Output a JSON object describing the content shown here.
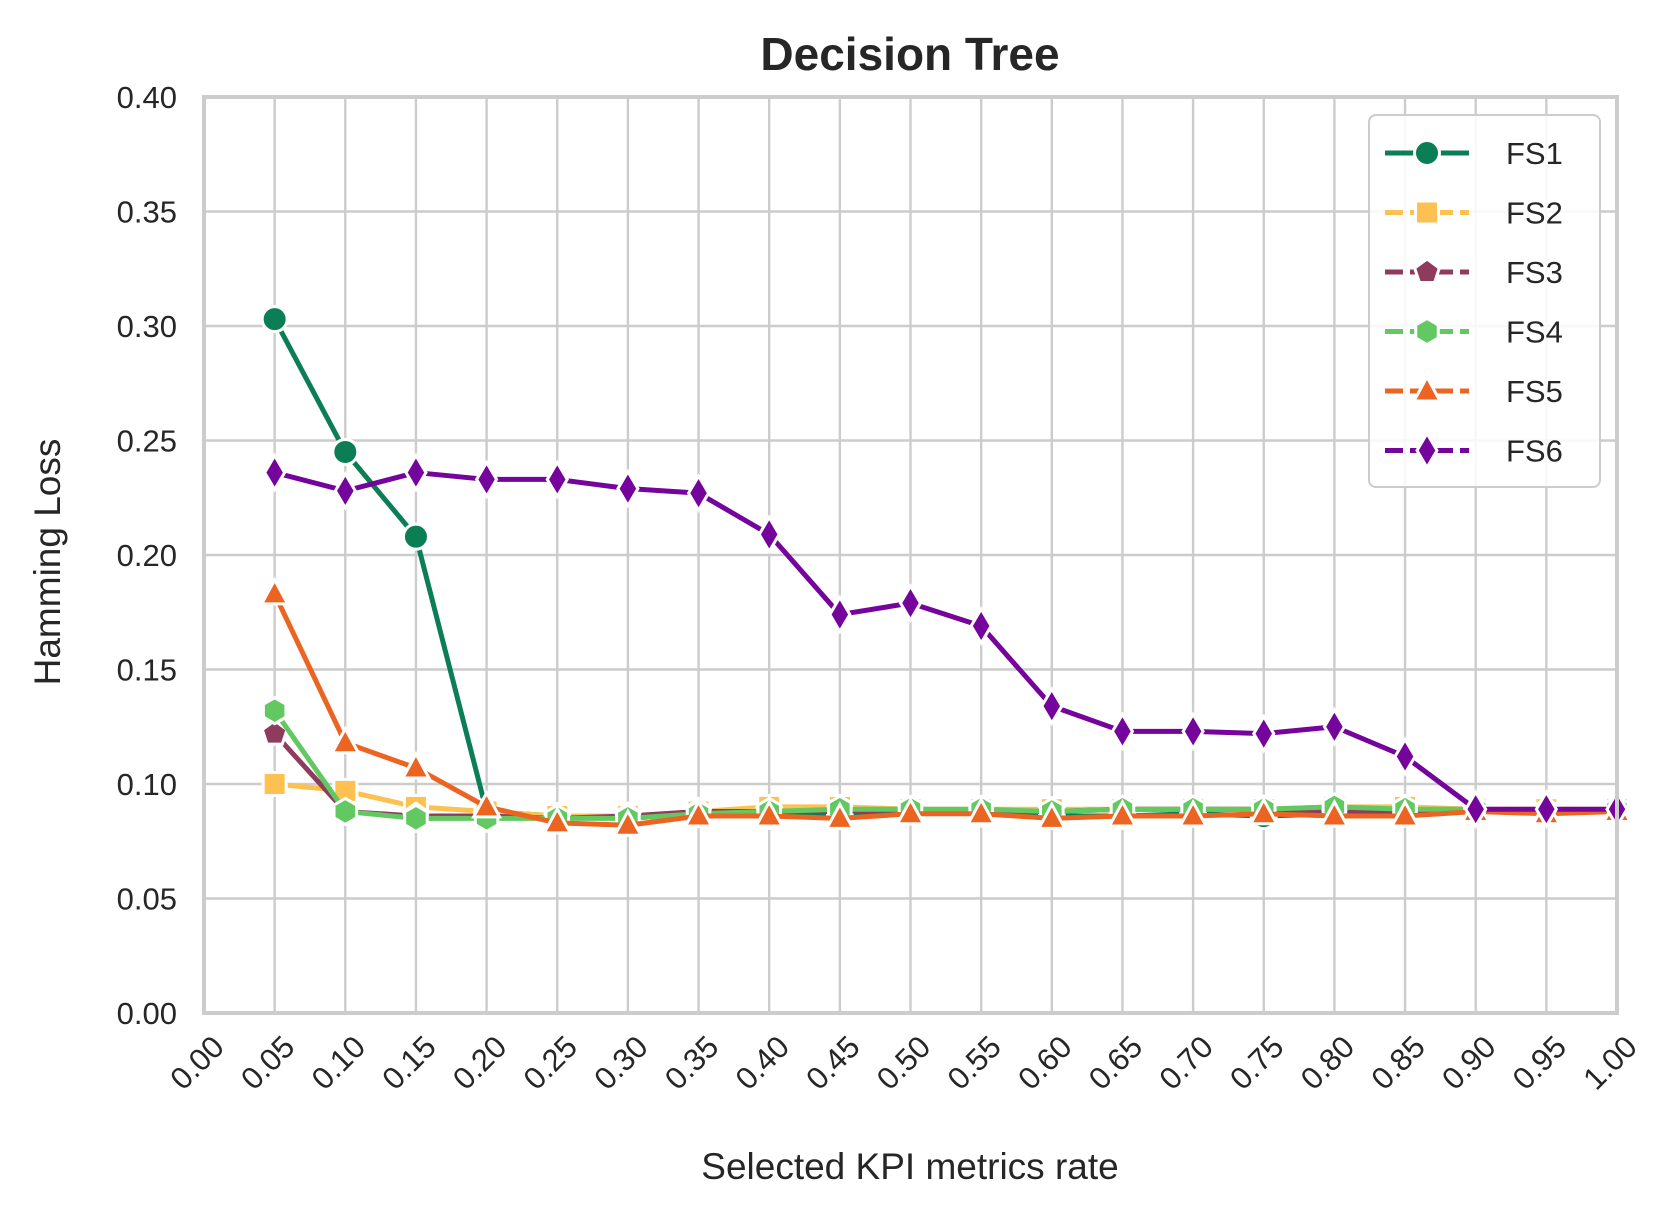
{
  "chart_data": {
    "type": "line",
    "title": "Decision Tree",
    "xlabel": "Selected KPI metrics rate",
    "ylabel": "Hamming Loss",
    "xlim": [
      0.0,
      1.0
    ],
    "ylim": [
      0.0,
      0.4
    ],
    "xticks": [
      "0.00",
      "0.05",
      "0.10",
      "0.15",
      "0.20",
      "0.25",
      "0.30",
      "0.35",
      "0.40",
      "0.45",
      "0.50",
      "0.55",
      "0.60",
      "0.65",
      "0.70",
      "0.75",
      "0.80",
      "0.85",
      "0.90",
      "0.95",
      "1.00"
    ],
    "yticks": [
      "0.00",
      "0.05",
      "0.10",
      "0.15",
      "0.20",
      "0.25",
      "0.30",
      "0.35",
      "0.40"
    ],
    "grid": true,
    "legend_position": "top-right",
    "x": [
      0.05,
      0.1,
      0.15,
      0.2,
      0.25,
      0.3,
      0.35,
      0.4,
      0.45,
      0.5,
      0.55,
      0.6,
      0.65,
      0.7,
      0.75,
      0.8,
      0.85,
      0.9,
      0.95,
      1.0
    ],
    "series": [
      {
        "name": "FS1",
        "color": "#0b7e55",
        "marker": "circle",
        "dashed": false,
        "values": [
          0.303,
          0.245,
          0.208,
          0.088,
          0.086,
          0.085,
          0.087,
          0.086,
          0.086,
          0.088,
          0.087,
          0.086,
          0.086,
          0.087,
          0.086,
          0.087,
          0.087,
          0.088,
          0.088,
          0.088
        ]
      },
      {
        "name": "FS2",
        "color": "#fdc151",
        "marker": "square",
        "dashed": true,
        "values": [
          0.1,
          0.097,
          0.09,
          0.088,
          0.086,
          0.086,
          0.088,
          0.09,
          0.09,
          0.089,
          0.089,
          0.089,
          0.089,
          0.089,
          0.089,
          0.09,
          0.09,
          0.089,
          0.089,
          0.089
        ]
      },
      {
        "name": "FS3",
        "color": "#8e3b5e",
        "marker": "pentagon",
        "dashed": true,
        "values": [
          0.122,
          0.088,
          0.086,
          0.086,
          0.085,
          0.086,
          0.088,
          0.088,
          0.088,
          0.089,
          0.088,
          0.088,
          0.089,
          0.089,
          0.089,
          0.088,
          0.088,
          0.089,
          0.088,
          0.089
        ]
      },
      {
        "name": "FS4",
        "color": "#62c962",
        "marker": "hexagon",
        "dashed": true,
        "values": [
          0.132,
          0.088,
          0.085,
          0.085,
          0.085,
          0.085,
          0.087,
          0.088,
          0.089,
          0.089,
          0.089,
          0.088,
          0.089,
          0.089,
          0.089,
          0.09,
          0.089,
          0.089,
          0.088,
          0.089
        ]
      },
      {
        "name": "FS5",
        "color": "#eb6421",
        "marker": "triangle",
        "dashed": true,
        "values": [
          0.183,
          0.118,
          0.107,
          0.09,
          0.083,
          0.082,
          0.086,
          0.086,
          0.085,
          0.087,
          0.087,
          0.085,
          0.086,
          0.086,
          0.087,
          0.086,
          0.086,
          0.088,
          0.087,
          0.088
        ]
      },
      {
        "name": "FS6",
        "color": "#74049b",
        "marker": "diamond",
        "dashed": true,
        "values": [
          0.236,
          0.228,
          0.236,
          0.233,
          0.233,
          0.229,
          0.227,
          0.209,
          0.174,
          0.179,
          0.169,
          0.134,
          0.123,
          0.123,
          0.122,
          0.125,
          0.112,
          0.089,
          0.089,
          0.089
        ]
      }
    ]
  }
}
